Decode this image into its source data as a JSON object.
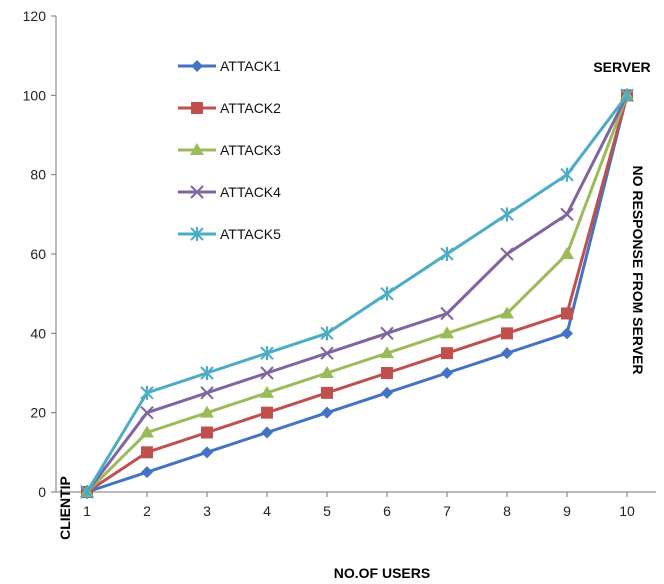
{
  "chart_data": {
    "type": "line",
    "title": "",
    "xlabel": "NO.OF USERS",
    "ylabel": "",
    "x": [
      1,
      2,
      3,
      4,
      5,
      6,
      7,
      8,
      9,
      10
    ],
    "ylim": [
      0,
      120
    ],
    "yticks": [
      0,
      20,
      40,
      60,
      80,
      100,
      120
    ],
    "grid": false,
    "legend_position": "top-left",
    "series": [
      {
        "name": "ATTACK1",
        "color": "#4472C4",
        "marker": "diamond",
        "values": [
          0,
          5,
          10,
          15,
          20,
          25,
          30,
          35,
          40,
          100
        ]
      },
      {
        "name": "ATTACK2",
        "color": "#C0504D",
        "marker": "square",
        "values": [
          0,
          10,
          15,
          20,
          25,
          30,
          35,
          40,
          45,
          100
        ]
      },
      {
        "name": "ATTACK3",
        "color": "#9BBB59",
        "marker": "triangle",
        "values": [
          0,
          15,
          20,
          25,
          30,
          35,
          40,
          45,
          60,
          100
        ]
      },
      {
        "name": "ATTACK4",
        "color": "#8064A2",
        "marker": "x",
        "values": [
          0,
          20,
          25,
          30,
          35,
          40,
          45,
          60,
          70,
          100
        ]
      },
      {
        "name": "ATTACK5",
        "color": "#4BACC6",
        "marker": "star",
        "values": [
          0,
          25,
          30,
          35,
          40,
          50,
          60,
          70,
          80,
          100
        ]
      }
    ],
    "annotations": {
      "client": "CLIENTIP",
      "server": "SERVER",
      "no_response": "NO RESPONSE FROM SERVER"
    }
  }
}
